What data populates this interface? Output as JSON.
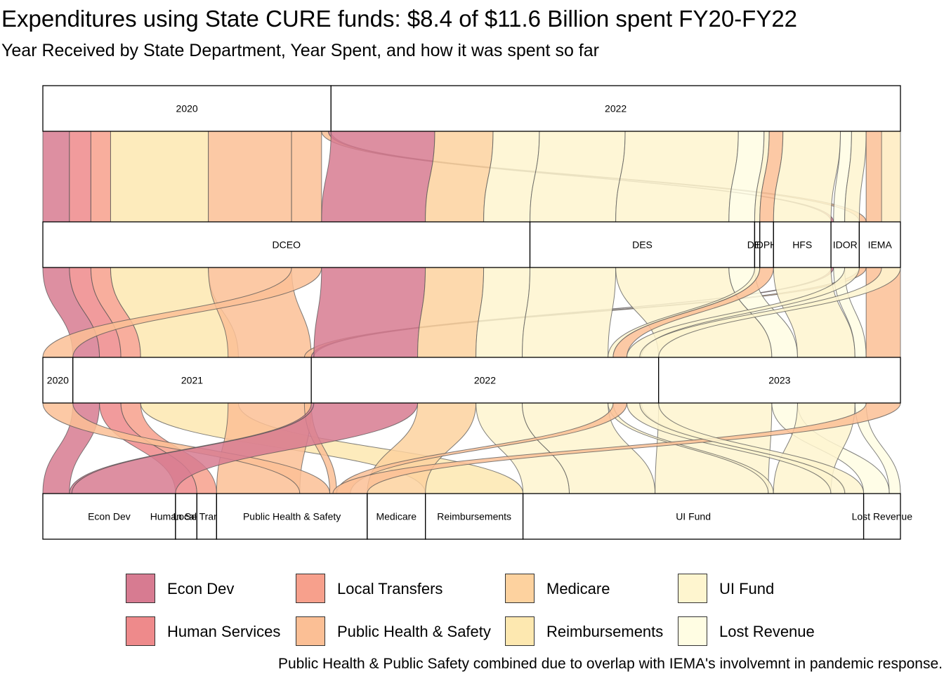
{
  "title": "Expenditures using State CURE funds: $8.4 of $11.6 Billion spent FY20-FY22",
  "subtitle": "Year Received by State Department, Year Spent, and how it was spent so far",
  "caption": "Public Health & Public Safety combined due to overlap with IEMA's involvemnt in pandemic response.",
  "colors": {
    "Econ Dev": "#d77b91",
    "Human Services": "#ee8a8b",
    "Local Transfers": "#f7a08c",
    "Public Health & Safety": "#fbbf95",
    "Medicare": "#fdd29f",
    "Reimbursements": "#fde8b0",
    "UI Fund": "#fef5cf",
    "Lost Revenue": "#fffde3"
  },
  "chart_data": {
    "type": "alluvial",
    "units": "share of total (approx.)",
    "axes": [
      {
        "name": "Year Received",
        "strata": [
          {
            "label": "2020",
            "value": 33.6
          },
          {
            "label": "2022",
            "value": 66.4
          }
        ]
      },
      {
        "name": "Department",
        "strata": [
          {
            "label": "DCEO",
            "value": 56.8
          },
          {
            "label": "DES",
            "value": 26.2
          },
          {
            "label": "DES",
            "value": 0.6
          },
          {
            "label": "DPH",
            "value": 1.6
          },
          {
            "label": "HFS",
            "value": 6.7
          },
          {
            "label": "IDOR",
            "value": 3.3
          },
          {
            "label": "IEMA",
            "value": 4.8
          }
        ]
      },
      {
        "name": "Year Spent",
        "strata": [
          {
            "label": "2020",
            "value": 3.5
          },
          {
            "label": "2021",
            "value": 27.8
          },
          {
            "label": "2022",
            "value": 40.5
          },
          {
            "label": "2023",
            "value": 28.2
          }
        ]
      },
      {
        "name": "Category",
        "strata": [
          {
            "label": "Econ Dev",
            "value": 15.5
          },
          {
            "label": "Human Services",
            "value": 2.5
          },
          {
            "label": "Local Transfers",
            "value": 2.3
          },
          {
            "label": "Public Health & Safety",
            "value": 17.6
          },
          {
            "label": "Medicare",
            "value": 6.8
          },
          {
            "label": "Reimbursements",
            "value": 11.4
          },
          {
            "label": "UI Fund",
            "value": 39.8
          },
          {
            "label": "Lost Revenue",
            "value": 4.3
          }
        ]
      }
    ],
    "flows": [
      {
        "category": "Econ Dev",
        "received": "2020",
        "dept": "DCEO",
        "spent": "2021",
        "value": 3.1
      },
      {
        "category": "Human Services",
        "received": "2020",
        "dept": "DCEO",
        "spent": "2021",
        "value": 2.5
      },
      {
        "category": "Local Transfers",
        "received": "2020",
        "dept": "DCEO",
        "spent": "2021",
        "value": 2.3
      },
      {
        "category": "Reimbursements",
        "received": "2020",
        "dept": "DCEO",
        "spent": "2021",
        "value": 11.4
      },
      {
        "category": "Public Health & Safety",
        "received": "2020",
        "dept": "DCEO",
        "spent": "2021",
        "value": 9.7
      },
      {
        "category": "Public Health & Safety",
        "received": "2020",
        "dept": "DCEO",
        "spent": "2020",
        "value": 3.5
      },
      {
        "category": "Public Health & Safety",
        "received": "2020",
        "dept": "IEMA",
        "spent": "2021",
        "value": 0.8
      },
      {
        "category": "Econ Dev",
        "received": "2020",
        "dept": "IDOR",
        "spent": "2022",
        "value": 0.3
      },
      {
        "category": "Econ Dev",
        "received": "2022",
        "dept": "DCEO",
        "spent": "2022",
        "value": 12.1
      },
      {
        "category": "Medicare",
        "received": "2022",
        "dept": "DCEO",
        "spent": "2022",
        "value": 6.8
      },
      {
        "category": "UI Fund",
        "received": "2022",
        "dept": "DCEO",
        "spent": "2022",
        "value": 5.4
      },
      {
        "category": "UI Fund",
        "received": "2022",
        "dept": "DES",
        "spent": "2022",
        "value": 10.0
      },
      {
        "category": "UI Fund",
        "received": "2022",
        "dept": "DES",
        "spent": "2023",
        "value": 13.2
      },
      {
        "category": "Lost Revenue",
        "received": "2022",
        "dept": "DES",
        "spent": "2023",
        "value": 3.0
      },
      {
        "category": "UI Fund",
        "received": "2022",
        "dept": "DES",
        "spent": "2022",
        "value": 0.6
      },
      {
        "category": "Public Health & Safety",
        "received": "2022",
        "dept": "DPH",
        "spent": "2022",
        "value": 1.6
      },
      {
        "category": "UI Fund",
        "received": "2022",
        "dept": "HFS",
        "spent": "2023",
        "value": 6.7
      },
      {
        "category": "Lost Revenue",
        "received": "2022",
        "dept": "IDOR",
        "spent": "2023",
        "value": 1.3
      },
      {
        "category": "Econ Dev",
        "received": "2022",
        "dept": "IDOR",
        "spent": "2022",
        "value": 0.0
      },
      {
        "category": "UI Fund",
        "received": "2022",
        "dept": "IDOR",
        "spent": "2022",
        "value": 1.7
      },
      {
        "category": "Public Health & Safety",
        "received": "2022",
        "dept": "IEMA",
        "spent": "2023",
        "value": 4.0
      },
      {
        "category": "UI Fund",
        "received": "2022",
        "dept": "IEMA",
        "spent": "2022",
        "value": 2.2
      }
    ],
    "legend": {
      "position": "bottom",
      "entries": [
        "Econ Dev",
        "Human Services",
        "Local Transfers",
        "Public Health & Safety",
        "Medicare",
        "Reimbursements",
        "UI Fund",
        "Lost Revenue"
      ]
    }
  }
}
